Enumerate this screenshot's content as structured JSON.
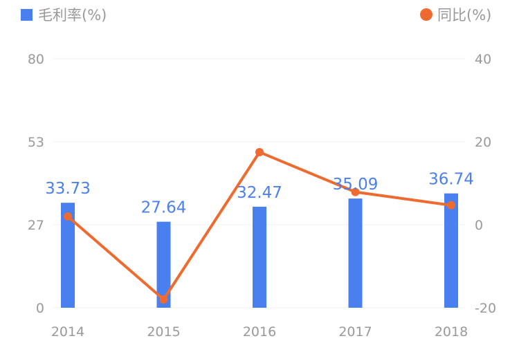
{
  "chart_data": {
    "type": "bar",
    "categories": [
      "2014",
      "2015",
      "2016",
      "2017",
      "2018"
    ],
    "series": [
      {
        "name": "毛利率(%)",
        "type": "bar",
        "axis": "left",
        "values": [
          33.73,
          27.64,
          32.47,
          35.09,
          36.74
        ],
        "data_labels": [
          "33.73",
          "27.64",
          "32.47",
          "35.09",
          "36.74"
        ],
        "color": "#4a7fef"
      },
      {
        "name": "同比(%)",
        "type": "line",
        "axis": "right",
        "values": [
          2.0,
          -18.0,
          17.5,
          7.9,
          4.7
        ],
        "color": "#ee6a2e"
      }
    ],
    "y_left": {
      "ylim": [
        0,
        80
      ],
      "ticks": [
        "0",
        "27",
        "53",
        "80"
      ]
    },
    "y_right": {
      "ylim": [
        -20,
        40
      ],
      "ticks": [
        "-20",
        "0",
        "20",
        "40"
      ]
    },
    "legend_position": "top",
    "grid": true
  },
  "colors": {
    "grid": "#f0f0f0",
    "tick_text": "#999999",
    "label_text": "#4a7fef"
  }
}
